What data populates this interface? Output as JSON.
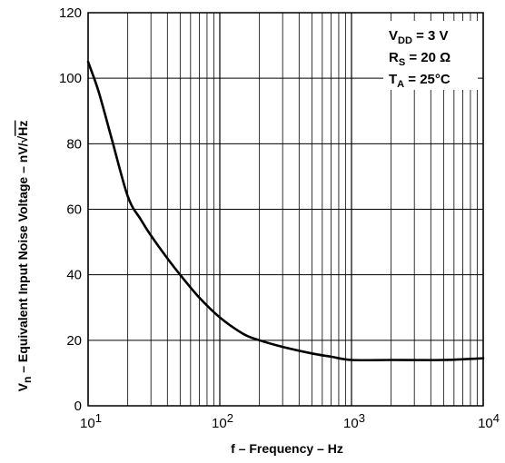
{
  "chart_data": {
    "type": "line",
    "xscale": "log",
    "xlim": [
      10,
      10000
    ],
    "ylim": [
      0,
      120
    ],
    "grid": true,
    "xlabel": "f – Frequency – Hz",
    "ylabel": {
      "prefix": "V",
      "sub": "n",
      "rest": " – Equivalent Input Noise Voltage – nV/",
      "root_symbol": "√",
      "root_arg": "Hz"
    },
    "x_ticks": [
      {
        "value": 10,
        "base": "10",
        "exp": "1"
      },
      {
        "value": 100,
        "base": "10",
        "exp": "2"
      },
      {
        "value": 1000,
        "base": "10",
        "exp": "3"
      },
      {
        "value": 10000,
        "base": "10",
        "exp": "4"
      }
    ],
    "y_ticks": [
      "0",
      "20",
      "40",
      "60",
      "80",
      "100",
      "120"
    ],
    "conditions": [
      {
        "main": "V",
        "sub": "DD",
        "rest": " = 3 V"
      },
      {
        "main": "R",
        "sub": "S",
        "rest": " = 20 Ω"
      },
      {
        "main": "T",
        "sub": "A",
        "rest": " = 25°C"
      }
    ],
    "series": [
      {
        "color": "#000000",
        "x": [
          10,
          12,
          15,
          20,
          25,
          30,
          40,
          50,
          70,
          100,
          150,
          200,
          300,
          500,
          700,
          1000,
          2000,
          5000,
          10000
        ],
        "y": [
          105,
          96,
          82,
          64,
          57,
          52,
          45,
          40,
          33,
          27,
          22,
          20,
          18,
          16,
          15,
          14,
          14,
          14,
          14.5
        ]
      }
    ]
  }
}
